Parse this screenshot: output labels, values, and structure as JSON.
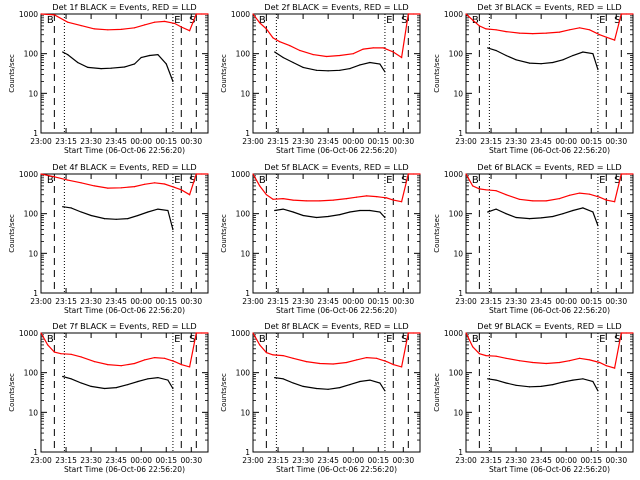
{
  "figure": {
    "xlabel": "Start Time (06-Oct-06 22:56:20)",
    "ylabel": "Counts/sec",
    "x_tick_labels": [
      "23:00",
      "23:15",
      "23:30",
      "23:45",
      "00:00",
      "00:15",
      "00:30"
    ],
    "y_tick_labels": [
      "1",
      "10",
      "100",
      "1000"
    ],
    "marker_labels": {
      "begin": "B",
      "end": "E",
      "start": "S"
    },
    "colors": {
      "events": "#000000",
      "lld": "#ff0000",
      "background": "#ffffff"
    }
  },
  "chart_data": [
    {
      "type": "line",
      "title": "Det 1f  BLACK = Events, RED = LLD",
      "x_unit": "minutes after 23:00",
      "ylim": [
        1,
        1000
      ],
      "y_scale": "log",
      "xlim": [
        0,
        100
      ],
      "dashed_vlines": [
        8,
        84,
        93
      ],
      "dotted_vlines": [
        14,
        79
      ],
      "series": [
        {
          "name": "Events",
          "color": "#000000",
          "x": [
            13,
            16,
            22,
            28,
            36,
            42,
            50,
            56,
            60,
            65,
            70,
            75,
            79
          ],
          "y": [
            110,
            95,
            60,
            45,
            42,
            43,
            46,
            55,
            80,
            90,
            95,
            55,
            20
          ]
        },
        {
          "name": "LLD",
          "color": "#ff0000",
          "x": [
            0,
            8,
            16,
            24,
            32,
            40,
            48,
            56,
            62,
            68,
            74,
            80,
            84,
            89,
            93,
            96,
            100
          ],
          "y": [
            1000,
            950,
            620,
            510,
            420,
            400,
            410,
            450,
            530,
            620,
            650,
            580,
            470,
            380,
            1000,
            1000,
            1000
          ]
        }
      ]
    },
    {
      "type": "line",
      "title": "Det 2f  BLACK = Events, RED = LLD",
      "x_unit": "minutes after 23:00",
      "ylim": [
        1,
        1000
      ],
      "y_scale": "log",
      "xlim": [
        0,
        100
      ],
      "dashed_vlines": [
        8,
        84,
        93
      ],
      "dotted_vlines": [
        14,
        79
      ],
      "series": [
        {
          "name": "Events",
          "color": "#000000",
          "x": [
            13,
            18,
            24,
            30,
            38,
            45,
            52,
            58,
            64,
            70,
            76,
            79
          ],
          "y": [
            110,
            80,
            60,
            45,
            38,
            37,
            38,
            42,
            52,
            60,
            55,
            35
          ]
        },
        {
          "name": "LLD",
          "color": "#ff0000",
          "x": [
            0,
            4,
            8,
            12,
            16,
            22,
            28,
            36,
            44,
            52,
            60,
            66,
            72,
            78,
            84,
            89,
            93,
            96,
            100
          ],
          "y": [
            1000,
            600,
            420,
            250,
            200,
            160,
            120,
            95,
            85,
            90,
            100,
            130,
            140,
            140,
            110,
            80,
            1000,
            1000,
            1000
          ]
        }
      ]
    },
    {
      "type": "line",
      "title": "Det 3f  BLACK = Events, RED = LLD",
      "x_unit": "minutes after 23:00",
      "ylim": [
        1,
        1000
      ],
      "y_scale": "log",
      "xlim": [
        0,
        100
      ],
      "dashed_vlines": [
        8,
        84,
        93
      ],
      "dotted_vlines": [
        14,
        79
      ],
      "series": [
        {
          "name": "Events",
          "color": "#000000",
          "x": [
            13,
            18,
            24,
            30,
            38,
            45,
            52,
            58,
            64,
            70,
            76,
            79
          ],
          "y": [
            140,
            120,
            90,
            70,
            58,
            56,
            60,
            70,
            90,
            110,
            100,
            40
          ]
        },
        {
          "name": "LLD",
          "color": "#ff0000",
          "x": [
            0,
            4,
            8,
            12,
            18,
            24,
            32,
            40,
            48,
            56,
            62,
            68,
            74,
            80,
            84,
            89,
            93,
            96,
            100
          ],
          "y": [
            1000,
            700,
            500,
            420,
            400,
            360,
            330,
            320,
            330,
            350,
            400,
            450,
            400,
            300,
            260,
            220,
            1000,
            1000,
            1000
          ]
        }
      ]
    },
    {
      "type": "line",
      "title": "Det 4f  BLACK = Events, RED = LLD",
      "x_unit": "minutes after 23:00",
      "ylim": [
        1,
        1000
      ],
      "y_scale": "log",
      "xlim": [
        0,
        100
      ],
      "dashed_vlines": [
        8,
        84,
        93
      ],
      "dotted_vlines": [
        14,
        79
      ],
      "series": [
        {
          "name": "Events",
          "color": "#000000",
          "x": [
            13,
            18,
            24,
            30,
            38,
            45,
            52,
            58,
            64,
            70,
            76,
            79
          ],
          "y": [
            150,
            140,
            110,
            90,
            75,
            72,
            75,
            90,
            110,
            130,
            120,
            40
          ]
        },
        {
          "name": "LLD",
          "color": "#ff0000",
          "x": [
            0,
            8,
            16,
            24,
            32,
            40,
            48,
            56,
            62,
            68,
            74,
            80,
            84,
            89,
            93,
            96,
            100
          ],
          "y": [
            1000,
            850,
            700,
            600,
            500,
            440,
            450,
            480,
            550,
            600,
            560,
            460,
            400,
            300,
            1000,
            1000,
            1000
          ]
        }
      ]
    },
    {
      "type": "line",
      "title": "Det 5f  BLACK = Events, RED = LLD",
      "x_unit": "minutes after 23:00",
      "ylim": [
        1,
        1000
      ],
      "y_scale": "log",
      "xlim": [
        0,
        100
      ],
      "dashed_vlines": [
        8,
        84,
        93
      ],
      "dotted_vlines": [
        14,
        79
      ],
      "series": [
        {
          "name": "Events",
          "color": "#000000",
          "x": [
            13,
            18,
            24,
            30,
            38,
            45,
            52,
            58,
            64,
            70,
            76,
            79
          ],
          "y": [
            120,
            130,
            110,
            90,
            80,
            85,
            95,
            110,
            120,
            120,
            110,
            80
          ]
        },
        {
          "name": "LLD",
          "color": "#ff0000",
          "x": [
            0,
            4,
            8,
            12,
            18,
            24,
            32,
            40,
            48,
            56,
            62,
            68,
            74,
            80,
            84,
            89,
            93,
            96,
            100
          ],
          "y": [
            1000,
            500,
            300,
            230,
            240,
            220,
            210,
            210,
            220,
            240,
            260,
            280,
            270,
            250,
            220,
            200,
            1000,
            1000,
            1000
          ]
        }
      ]
    },
    {
      "type": "line",
      "title": "Det 6f  BLACK = Events, RED = LLD",
      "x_unit": "minutes after 23:00",
      "ylim": [
        1,
        1000
      ],
      "y_scale": "log",
      "xlim": [
        0,
        100
      ],
      "dashed_vlines": [
        8,
        84,
        93
      ],
      "dotted_vlines": [
        14,
        79
      ],
      "series": [
        {
          "name": "Events",
          "color": "#000000",
          "x": [
            13,
            18,
            24,
            30,
            38,
            45,
            52,
            58,
            64,
            70,
            76,
            79
          ],
          "y": [
            110,
            130,
            100,
            80,
            75,
            78,
            85,
            100,
            120,
            140,
            110,
            50
          ]
        },
        {
          "name": "LLD",
          "color": "#ff0000",
          "x": [
            0,
            4,
            8,
            12,
            18,
            24,
            32,
            40,
            48,
            56,
            62,
            68,
            74,
            80,
            84,
            89,
            93,
            96,
            100
          ],
          "y": [
            1000,
            500,
            420,
            400,
            380,
            300,
            230,
            210,
            210,
            240,
            290,
            330,
            310,
            260,
            220,
            200,
            1000,
            1000,
            1000
          ]
        }
      ]
    },
    {
      "type": "line",
      "title": "Det 7f  BLACK = Events, RED = LLD",
      "x_unit": "minutes after 23:00",
      "ylim": [
        1,
        1000
      ],
      "y_scale": "log",
      "xlim": [
        0,
        100
      ],
      "dashed_vlines": [
        8,
        84,
        93
      ],
      "dotted_vlines": [
        14,
        79
      ],
      "series": [
        {
          "name": "Events",
          "color": "#000000",
          "x": [
            13,
            18,
            24,
            30,
            38,
            45,
            52,
            58,
            64,
            70,
            76,
            79
          ],
          "y": [
            80,
            70,
            55,
            45,
            40,
            42,
            50,
            60,
            70,
            75,
            65,
            40
          ]
        },
        {
          "name": "LLD",
          "color": "#ff0000",
          "x": [
            0,
            4,
            8,
            12,
            18,
            24,
            32,
            40,
            48,
            56,
            62,
            68,
            74,
            80,
            84,
            89,
            93,
            96,
            100
          ],
          "y": [
            1000,
            500,
            330,
            300,
            290,
            250,
            190,
            160,
            150,
            170,
            210,
            240,
            230,
            190,
            160,
            140,
            1000,
            1000,
            1000
          ]
        }
      ]
    },
    {
      "type": "line",
      "title": "Det 8f  BLACK = Events, RED = LLD",
      "x_unit": "minutes after 23:00",
      "ylim": [
        1,
        1000
      ],
      "y_scale": "log",
      "xlim": [
        0,
        100
      ],
      "dashed_vlines": [
        8,
        84,
        93
      ],
      "dotted_vlines": [
        14,
        79
      ],
      "series": [
        {
          "name": "Events",
          "color": "#000000",
          "x": [
            13,
            18,
            24,
            30,
            38,
            45,
            52,
            58,
            64,
            70,
            76,
            79
          ],
          "y": [
            75,
            70,
            55,
            45,
            40,
            38,
            42,
            50,
            60,
            65,
            55,
            35
          ]
        },
        {
          "name": "LLD",
          "color": "#ff0000",
          "x": [
            0,
            4,
            8,
            12,
            18,
            24,
            32,
            40,
            48,
            56,
            62,
            68,
            74,
            80,
            84,
            89,
            93,
            96,
            100
          ],
          "y": [
            1000,
            500,
            320,
            280,
            270,
            230,
            190,
            170,
            165,
            180,
            210,
            240,
            230,
            190,
            160,
            140,
            1000,
            1000,
            1000
          ]
        }
      ]
    },
    {
      "type": "line",
      "title": "Det 9f  BLACK = Events, RED = LLD",
      "x_unit": "minutes after 23:00",
      "ylim": [
        1,
        1000
      ],
      "y_scale": "log",
      "xlim": [
        0,
        100
      ],
      "dashed_vlines": [
        8,
        84,
        93
      ],
      "dotted_vlines": [
        14,
        79
      ],
      "series": [
        {
          "name": "Events",
          "color": "#000000",
          "x": [
            13,
            18,
            24,
            30,
            38,
            45,
            52,
            58,
            64,
            70,
            76,
            79
          ],
          "y": [
            70,
            65,
            55,
            48,
            44,
            45,
            50,
            58,
            65,
            70,
            60,
            35
          ]
        },
        {
          "name": "LLD",
          "color": "#ff0000",
          "x": [
            0,
            4,
            8,
            12,
            18,
            24,
            32,
            40,
            48,
            56,
            62,
            68,
            74,
            80,
            84,
            89,
            93,
            96,
            100
          ],
          "y": [
            1000,
            450,
            300,
            270,
            260,
            230,
            200,
            180,
            170,
            180,
            200,
            230,
            210,
            180,
            150,
            130,
            1000,
            1000,
            1000
          ]
        }
      ]
    }
  ]
}
